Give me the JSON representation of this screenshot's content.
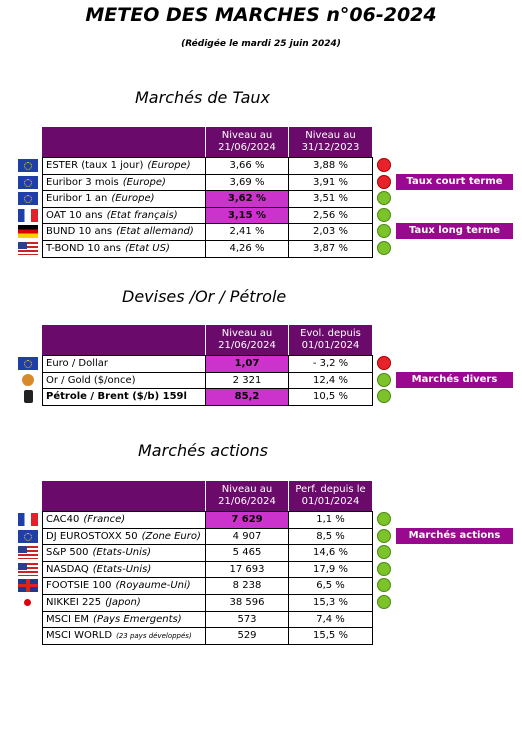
{
  "header": {
    "title": "METEO DES MARCHES n°06-2024",
    "subtitle": "(Rédigée le mardi 25 juin 2024)"
  },
  "sections": [
    {
      "title": "Marchés de Taux",
      "headers": [
        "Niveau au 21/06/2024",
        "Niveau au 31/12/2023"
      ],
      "rows": [
        [
          "ESTER (taux 1 jour)",
          "(Europe)",
          "3,66 %",
          "3,88 %"
        ],
        [
          "Euribor 3 mois",
          "(Europe)",
          "3,69 %",
          "3,91 %"
        ],
        [
          "Euribor 1 an",
          "(Europe)",
          "3,62 %",
          "3,51 %"
        ],
        [
          "OAT 10 ans",
          "(Etat français)",
          "3,15 %",
          "2,56 %"
        ],
        [
          "BUND 10 ans",
          "(Etat allemand)",
          "2,41 %",
          "2,03 %"
        ],
        [
          "T-BOND 10 ans",
          "(Etat US)",
          "4,26 %",
          "3,87 %"
        ]
      ],
      "tags": [
        "Taux court terme",
        "Taux long terme"
      ]
    },
    {
      "title": "Devises /Or / Pétrole",
      "headers": [
        "Niveau au 21/06/2024",
        "Evol. depuis 01/01/2024"
      ],
      "rows": [
        [
          "Euro / Dollar",
          "",
          "1,07",
          "- 3,2 %"
        ],
        [
          "Or / Gold ($/once)",
          "",
          "2 321",
          "12,4 %"
        ],
        [
          "Pétrole / Brent ($/b) 159l",
          "",
          "85,2",
          "10,5 %"
        ]
      ],
      "tags": [
        "Marchés divers"
      ]
    },
    {
      "title": "Marchés actions",
      "headers": [
        "Niveau au 21/06/2024",
        "Perf. depuis le 01/01/2024"
      ],
      "rows": [
        [
          "CAC40",
          "(France)",
          "7 629",
          "1,1 %"
        ],
        [
          "DJ EUROSTOXX 50",
          "(Zone Euro)",
          "4 907",
          "8,5 %"
        ],
        [
          "S&P 500",
          "(Etats-Unis)",
          "5 465",
          "14,6 %"
        ],
        [
          "NASDAQ",
          "(Etats-Unis)",
          "17 693",
          "17,9 %"
        ],
        [
          "FOOTSIE 100",
          "(Royaume-Uni)",
          "8 238",
          "6,5 %"
        ],
        [
          "NIKKEI 225",
          "(Japon)",
          "38 596",
          "15,3 %"
        ],
        [
          "MSCI EM",
          "(Pays Emergents)",
          "573",
          "7,4 %"
        ],
        [
          "MSCI WORLD",
          "(23 pays développés)",
          "529",
          "15,5 %"
        ]
      ],
      "tags": [
        "Marchés actions"
      ]
    }
  ]
}
